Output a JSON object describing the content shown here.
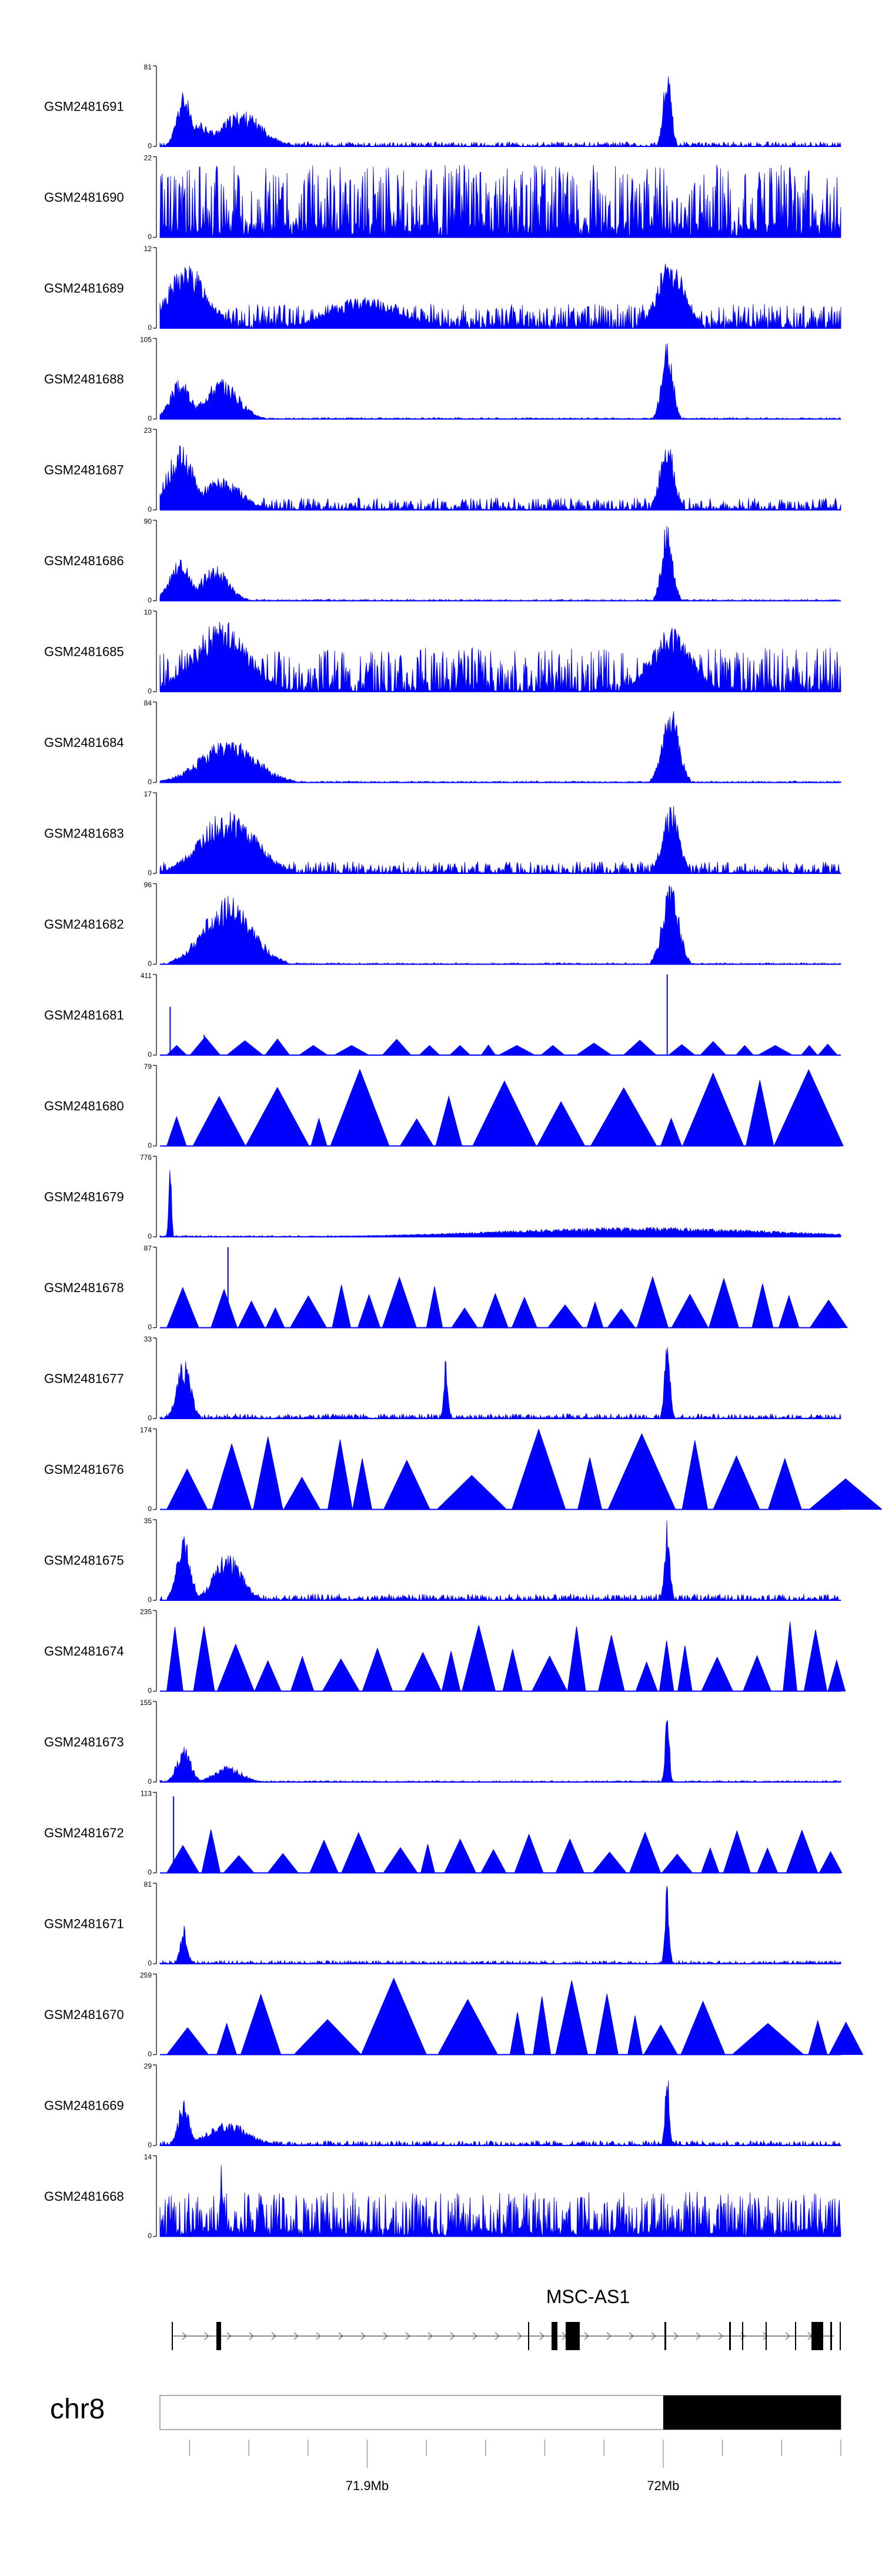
{
  "chart_data": {
    "type": "area",
    "track_color": "#0000ff",
    "tracks": [
      {
        "label": "GSM2481691",
        "max": "81",
        "min": "0",
        "style": "dense",
        "seed": 11,
        "base": 0.06,
        "peaks": [
          [
            0.035,
            0.7,
            0.01
          ],
          [
            0.12,
            0.45,
            0.03
          ],
          [
            0.745,
            1.0,
            0.006
          ],
          [
            0.06,
            0.3,
            0.02
          ]
        ]
      },
      {
        "label": "GSM2481690",
        "max": "22",
        "min": "0",
        "style": "spiky",
        "seed": 12,
        "base": 0.9,
        "peaks": []
      },
      {
        "label": "GSM2481689",
        "max": "12",
        "min": "0",
        "style": "dense",
        "seed": 13,
        "base": 0.3,
        "peaks": [
          [
            0.04,
            0.8,
            0.03
          ],
          [
            0.75,
            0.9,
            0.02
          ],
          [
            0.3,
            0.4,
            0.05
          ]
        ]
      },
      {
        "label": "GSM2481688",
        "max": "105",
        "min": "0",
        "style": "dense",
        "seed": 14,
        "base": 0.02,
        "peaks": [
          [
            0.03,
            0.5,
            0.015
          ],
          [
            0.09,
            0.5,
            0.025
          ],
          [
            0.745,
            1.0,
            0.008
          ]
        ]
      },
      {
        "label": "GSM2481687",
        "max": "23",
        "min": "0",
        "style": "dense",
        "seed": 15,
        "base": 0.15,
        "peaks": [
          [
            0.03,
            0.8,
            0.02
          ],
          [
            0.09,
            0.4,
            0.03
          ],
          [
            0.745,
            1.0,
            0.01
          ]
        ]
      },
      {
        "label": "GSM2481686",
        "max": "90",
        "min": "0",
        "style": "dense",
        "seed": 16,
        "base": 0.02,
        "peaks": [
          [
            0.03,
            0.55,
            0.015
          ],
          [
            0.08,
            0.45,
            0.02
          ],
          [
            0.745,
            1.0,
            0.008
          ]
        ]
      },
      {
        "label": "GSM2481685",
        "max": "10",
        "min": "0",
        "style": "dense",
        "seed": 17,
        "base": 0.55,
        "peaks": [
          [
            0.09,
            0.9,
            0.04
          ],
          [
            0.75,
            0.8,
            0.03
          ]
        ]
      },
      {
        "label": "GSM2481684",
        "max": "84",
        "min": "0",
        "style": "dense",
        "seed": 18,
        "base": 0.02,
        "peaks": [
          [
            0.1,
            0.55,
            0.04
          ],
          [
            0.75,
            0.95,
            0.012
          ]
        ]
      },
      {
        "label": "GSM2481683",
        "max": "17",
        "min": "0",
        "style": "dense",
        "seed": 19,
        "base": 0.15,
        "peaks": [
          [
            0.1,
            0.8,
            0.04
          ],
          [
            0.75,
            0.9,
            0.012
          ]
        ]
      },
      {
        "label": "GSM2481682",
        "max": "96",
        "min": "0",
        "style": "dense",
        "seed": 20,
        "base": 0.02,
        "peaks": [
          [
            0.1,
            0.85,
            0.035
          ],
          [
            0.75,
            1.0,
            0.012
          ]
        ]
      },
      {
        "label": "GSM2481681",
        "max": "411",
        "min": "0",
        "style": "tri",
        "seed": 21,
        "base": 0.2,
        "peaks": [
          [
            0.015,
            0.6,
            0.003
          ],
          [
            0.065,
            0.25,
            0.003
          ],
          [
            0.745,
            1.0,
            0.003
          ]
        ]
      },
      {
        "label": "GSM2481680",
        "max": "79",
        "min": "0",
        "style": "tri",
        "seed": 22,
        "base": 0.95,
        "peaks": []
      },
      {
        "label": "GSM2481679",
        "max": "776",
        "min": "0",
        "style": "dense",
        "seed": 23,
        "base": 0.02,
        "peaks": [
          [
            0.015,
            1.0,
            0.002
          ],
          [
            0.7,
            0.12,
            0.2
          ]
        ]
      },
      {
        "label": "GSM2481678",
        "max": "87",
        "min": "0",
        "style": "tri",
        "seed": 24,
        "base": 0.65,
        "peaks": [
          [
            0.1,
            1.0,
            0.003
          ]
        ]
      },
      {
        "label": "GSM2481677",
        "max": "33",
        "min": "0",
        "style": "dense",
        "seed": 25,
        "base": 0.06,
        "peaks": [
          [
            0.035,
            0.75,
            0.01
          ],
          [
            0.42,
            0.8,
            0.003
          ],
          [
            0.745,
            0.98,
            0.004
          ]
        ]
      },
      {
        "label": "GSM2481676",
        "max": "174",
        "min": "0",
        "style": "tri",
        "seed": 26,
        "base": 1.0,
        "peaks": []
      },
      {
        "label": "GSM2481675",
        "max": "35",
        "min": "0",
        "style": "dense",
        "seed": 27,
        "base": 0.08,
        "peaks": [
          [
            0.035,
            0.8,
            0.01
          ],
          [
            0.1,
            0.6,
            0.02
          ],
          [
            0.745,
            1.0,
            0.004
          ]
        ]
      },
      {
        "label": "GSM2481674",
        "max": "235",
        "min": "0",
        "style": "tri",
        "seed": 28,
        "base": 0.9,
        "peaks": []
      },
      {
        "label": "GSM2481673",
        "max": "155",
        "min": "0",
        "style": "dense",
        "seed": 29,
        "base": 0.02,
        "peaks": [
          [
            0.035,
            0.45,
            0.01
          ],
          [
            0.1,
            0.2,
            0.02
          ],
          [
            0.745,
            1.0,
            0.003
          ]
        ]
      },
      {
        "label": "GSM2481672",
        "max": "113",
        "min": "0",
        "style": "tri",
        "seed": 30,
        "base": 0.55,
        "peaks": [
          [
            0.02,
            0.95,
            0.003
          ]
        ]
      },
      {
        "label": "GSM2481671",
        "max": "81",
        "min": "0",
        "style": "dense",
        "seed": 31,
        "base": 0.04,
        "peaks": [
          [
            0.035,
            0.5,
            0.005
          ],
          [
            0.745,
            1.0,
            0.003
          ]
        ]
      },
      {
        "label": "GSM2481670",
        "max": "259",
        "min": "0",
        "style": "tri",
        "seed": 32,
        "base": 0.95,
        "peaks": []
      },
      {
        "label": "GSM2481669",
        "max": "29",
        "min": "0",
        "style": "dense",
        "seed": 33,
        "base": 0.06,
        "peaks": [
          [
            0.035,
            0.6,
            0.008
          ],
          [
            0.1,
            0.3,
            0.03
          ],
          [
            0.745,
            1.0,
            0.003
          ]
        ]
      },
      {
        "label": "GSM2481668",
        "max": "14",
        "min": "0",
        "style": "spiky",
        "seed": 34,
        "base": 0.55,
        "peaks": [
          [
            0.09,
            0.9,
            0.002
          ]
        ]
      }
    ],
    "gene_label": "MSC-AS1",
    "chromosome": "chr8",
    "axis_ticks": [
      {
        "label": "71.9Mb",
        "position_mb": 71.9
      },
      {
        "label": "72Mb",
        "position_mb": 72.0
      }
    ],
    "region_mb": [
      71.83,
      72.06
    ]
  }
}
